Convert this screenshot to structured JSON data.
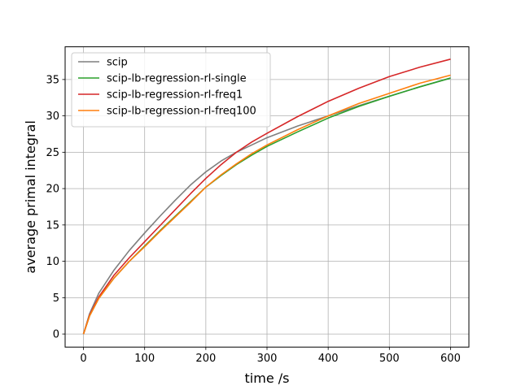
{
  "chart_data": {
    "type": "line",
    "title": "",
    "xlabel": "time /s",
    "ylabel": "average primal integral",
    "xlim": [
      -30,
      630
    ],
    "ylim": [
      -1.8,
      39.5
    ],
    "xticks": [
      0,
      100,
      200,
      300,
      400,
      500,
      600
    ],
    "yticks": [
      0,
      5,
      10,
      15,
      20,
      25,
      30,
      35
    ],
    "grid": true,
    "legend_position": "top-left",
    "series": [
      {
        "name": "scip",
        "color": "#7f7f7f",
        "x": [
          0,
          10,
          25,
          50,
          75,
          100,
          125,
          150,
          175,
          200,
          225,
          250,
          275,
          300,
          350,
          400,
          450,
          500,
          550,
          600
        ],
        "y": [
          0,
          2.8,
          5.6,
          8.8,
          11.5,
          13.9,
          16.2,
          18.4,
          20.5,
          22.3,
          23.8,
          25.0,
          26.0,
          27.0,
          28.6,
          30.0,
          31.4,
          32.7,
          34.0,
          35.2
        ]
      },
      {
        "name": "scip-lb-regression-rl-single",
        "color": "#2ca02c",
        "x": [
          0,
          10,
          25,
          50,
          75,
          100,
          125,
          150,
          175,
          200,
          225,
          250,
          275,
          300,
          350,
          400,
          450,
          500,
          550,
          600
        ],
        "y": [
          0,
          2.5,
          4.9,
          7.7,
          10.0,
          12.1,
          14.2,
          16.2,
          18.2,
          20.2,
          21.8,
          23.3,
          24.6,
          25.8,
          27.8,
          29.7,
          31.3,
          32.7,
          34.0,
          35.2
        ]
      },
      {
        "name": "scip-lb-regression-rl-freq1",
        "color": "#d62728",
        "x": [
          0,
          10,
          25,
          50,
          75,
          100,
          125,
          150,
          175,
          200,
          225,
          250,
          275,
          300,
          350,
          400,
          450,
          500,
          550,
          600
        ],
        "y": [
          0,
          2.6,
          5.1,
          8.1,
          10.5,
          12.7,
          14.9,
          17.1,
          19.3,
          21.4,
          23.3,
          25.0,
          26.4,
          27.6,
          29.9,
          32.0,
          33.8,
          35.4,
          36.7,
          37.8
        ]
      },
      {
        "name": "scip-lb-regression-rl-freq100",
        "color": "#ff7f0e",
        "x": [
          0,
          10,
          25,
          50,
          75,
          100,
          125,
          150,
          175,
          200,
          225,
          250,
          275,
          300,
          350,
          400,
          450,
          500,
          550,
          600
        ],
        "y": [
          0,
          2.5,
          4.9,
          7.7,
          10.0,
          12.0,
          14.1,
          16.1,
          18.1,
          20.2,
          21.9,
          23.4,
          24.8,
          26.0,
          28.1,
          30.0,
          31.7,
          33.1,
          34.5,
          35.6
        ]
      }
    ]
  }
}
